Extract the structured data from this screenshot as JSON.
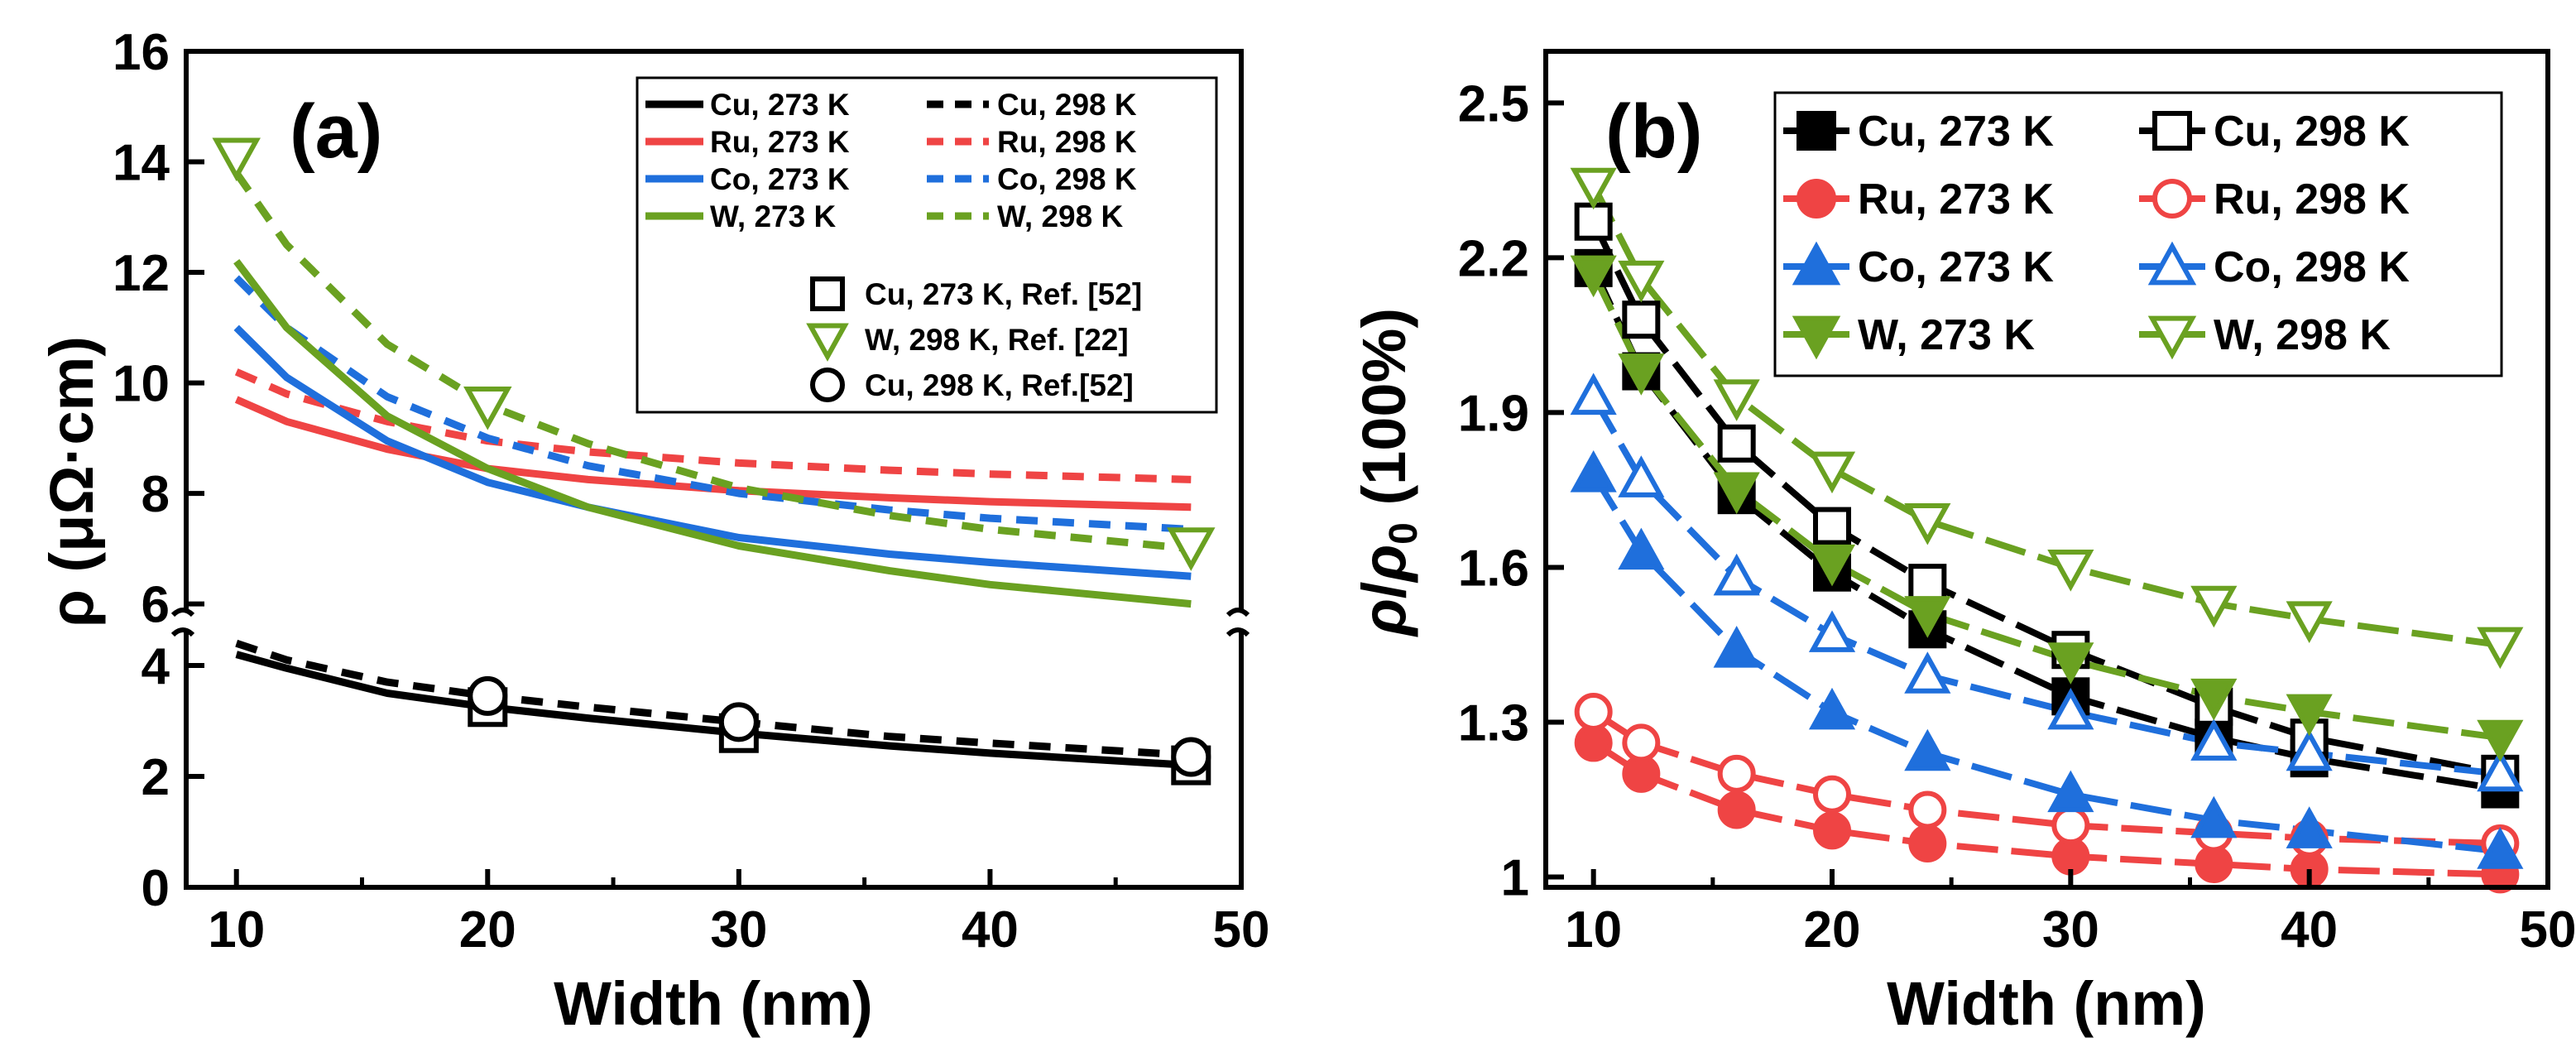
{
  "chart_data": [
    {
      "id": "a",
      "type": "line",
      "panel_label": "(a)",
      "xlabel": "Width (nm)",
      "ylabel": "ρ (μΩ·cm)",
      "xlim": [
        8,
        50
      ],
      "ylim_lower": [
        0,
        5
      ],
      "ylim_upper": [
        5.5,
        16
      ],
      "xticks": [
        "10",
        "20",
        "30",
        "40",
        "50"
      ],
      "yticks_lower": [
        "0",
        "2",
        "4"
      ],
      "yticks_upper": [
        "6",
        "8",
        "10",
        "12",
        "14",
        "16"
      ],
      "series": [
        {
          "name": "Cu, 273 K",
          "color": "#000000",
          "dash": "solid",
          "x": [
            10,
            12,
            16,
            20,
            24,
            30,
            36,
            40,
            48
          ],
          "y": [
            4.2,
            3.95,
            3.5,
            3.25,
            3.05,
            2.78,
            2.55,
            2.42,
            2.2
          ]
        },
        {
          "name": "Cu, 298 K",
          "color": "#000000",
          "dash": "dashed",
          "x": [
            10,
            12,
            16,
            20,
            24,
            30,
            36,
            40,
            48
          ],
          "y": [
            4.4,
            4.1,
            3.7,
            3.45,
            3.25,
            2.98,
            2.72,
            2.6,
            2.38
          ]
        },
        {
          "name": "Ru, 273 K",
          "color": "#ef4444",
          "dash": "solid",
          "x": [
            10,
            12,
            16,
            20,
            24,
            30,
            36,
            40,
            48
          ],
          "y": [
            9.7,
            9.3,
            8.8,
            8.45,
            8.25,
            8.05,
            7.92,
            7.85,
            7.75
          ]
        },
        {
          "name": "Ru, 298 K",
          "color": "#ef4444",
          "dash": "dashed",
          "x": [
            10,
            12,
            16,
            20,
            24,
            30,
            36,
            40,
            48
          ],
          "y": [
            10.2,
            9.8,
            9.3,
            8.95,
            8.75,
            8.55,
            8.42,
            8.35,
            8.25
          ]
        },
        {
          "name": "Co, 273 K",
          "color": "#1f6fdc",
          "dash": "solid",
          "x": [
            10,
            12,
            16,
            20,
            24,
            30,
            36,
            40,
            48
          ],
          "y": [
            11.0,
            10.1,
            8.95,
            8.2,
            7.75,
            7.2,
            6.9,
            6.75,
            6.5
          ]
        },
        {
          "name": "Co, 298 K",
          "color": "#1f6fdc",
          "dash": "dashed",
          "x": [
            10,
            12,
            16,
            20,
            24,
            30,
            36,
            40,
            48
          ],
          "y": [
            11.9,
            11.0,
            9.75,
            9.0,
            8.5,
            8.0,
            7.7,
            7.55,
            7.35
          ]
        },
        {
          "name": "W, 273 K",
          "color": "#6aa121",
          "dash": "solid",
          "x": [
            10,
            12,
            16,
            20,
            24,
            30,
            36,
            40,
            48
          ],
          "y": [
            12.2,
            11.0,
            9.4,
            8.45,
            7.75,
            7.05,
            6.6,
            6.35,
            6.0
          ]
        },
        {
          "name": "W, 298 K",
          "color": "#6aa121",
          "dash": "dashed",
          "x": [
            10,
            12,
            16,
            20,
            24,
            30,
            36,
            40,
            48
          ],
          "y": [
            13.8,
            12.5,
            10.7,
            9.6,
            8.9,
            8.1,
            7.6,
            7.35,
            7.0
          ]
        }
      ],
      "ref_series": [
        {
          "name": "Cu, 273 K, Ref. [52]",
          "marker": "square",
          "color": "#000000",
          "x": [
            20,
            30,
            48
          ],
          "y": [
            3.25,
            2.78,
            2.2
          ]
        },
        {
          "name": "W, 298 K, Ref. [22]",
          "marker": "triangle-down",
          "color": "#6aa121",
          "x": [
            10,
            20,
            48
          ],
          "y": [
            14.1,
            9.6,
            7.05
          ]
        },
        {
          "name": "Cu, 298 K, Ref.[52]",
          "marker": "circle",
          "color": "#000000",
          "x": [
            20,
            30,
            48
          ],
          "y": [
            3.45,
            2.98,
            2.35
          ]
        }
      ],
      "legend_position": "top-right"
    },
    {
      "id": "b",
      "type": "line",
      "panel_label": "(b)",
      "xlabel": "Width (nm)",
      "ylabel": "ρ/ρ0 (100%)",
      "xlim": [
        8,
        50
      ],
      "ylim": [
        0.98,
        2.6
      ],
      "xticks": [
        "10",
        "20",
        "30",
        "40",
        "50"
      ],
      "yticks": [
        "1",
        "1.3",
        "1.6",
        "1.9",
        "2.2",
        "2.5"
      ],
      "series": [
        {
          "name": "Cu, 273 K",
          "color": "#000000",
          "marker": "square",
          "filled": true,
          "x": [
            10,
            12,
            16,
            20,
            24,
            30,
            36,
            40,
            48
          ],
          "y": [
            2.18,
            1.98,
            1.74,
            1.59,
            1.48,
            1.35,
            1.27,
            1.23,
            1.17
          ]
        },
        {
          "name": "Cu, 298 K",
          "color": "#000000",
          "marker": "square",
          "filled": false,
          "x": [
            10,
            12,
            16,
            20,
            24,
            30,
            36,
            40,
            48
          ],
          "y": [
            2.27,
            2.08,
            1.84,
            1.68,
            1.57,
            1.44,
            1.33,
            1.27,
            1.2
          ]
        },
        {
          "name": "Ru, 273 K",
          "color": "#ef4444",
          "marker": "circle",
          "filled": true,
          "x": [
            10,
            12,
            16,
            20,
            24,
            30,
            36,
            40,
            48
          ],
          "y": [
            1.26,
            1.2,
            1.13,
            1.09,
            1.065,
            1.04,
            1.025,
            1.015,
            1.005
          ]
        },
        {
          "name": "Ru, 298 K",
          "color": "#ef4444",
          "marker": "circle",
          "filled": false,
          "x": [
            10,
            12,
            16,
            20,
            24,
            30,
            36,
            40,
            48
          ],
          "y": [
            1.32,
            1.26,
            1.2,
            1.16,
            1.13,
            1.1,
            1.085,
            1.075,
            1.065
          ]
        },
        {
          "name": "Co, 273 K",
          "color": "#1f6fdc",
          "marker": "triangle-up",
          "filled": true,
          "x": [
            10,
            12,
            16,
            20,
            24,
            30,
            36,
            40,
            48
          ],
          "y": [
            1.78,
            1.63,
            1.44,
            1.32,
            1.24,
            1.16,
            1.11,
            1.09,
            1.05
          ]
        },
        {
          "name": "Co, 298 K",
          "color": "#1f6fdc",
          "marker": "triangle-up",
          "filled": false,
          "x": [
            10,
            12,
            16,
            20,
            24,
            30,
            36,
            40,
            48
          ],
          "y": [
            1.93,
            1.77,
            1.58,
            1.47,
            1.39,
            1.32,
            1.26,
            1.24,
            1.2
          ]
        },
        {
          "name": "W, 273 K",
          "color": "#6aa121",
          "marker": "triangle-down",
          "filled": true,
          "x": [
            10,
            12,
            16,
            20,
            24,
            30,
            36,
            40,
            48
          ],
          "y": [
            2.17,
            1.98,
            1.75,
            1.61,
            1.51,
            1.42,
            1.35,
            1.32,
            1.27
          ]
        },
        {
          "name": "W, 298 K",
          "color": "#6aa121",
          "marker": "triangle-down",
          "filled": false,
          "x": [
            10,
            12,
            16,
            20,
            24,
            30,
            36,
            40,
            48
          ],
          "y": [
            2.34,
            2.16,
            1.93,
            1.79,
            1.69,
            1.6,
            1.53,
            1.5,
            1.45
          ]
        }
      ],
      "legend_position": "top-right"
    }
  ]
}
